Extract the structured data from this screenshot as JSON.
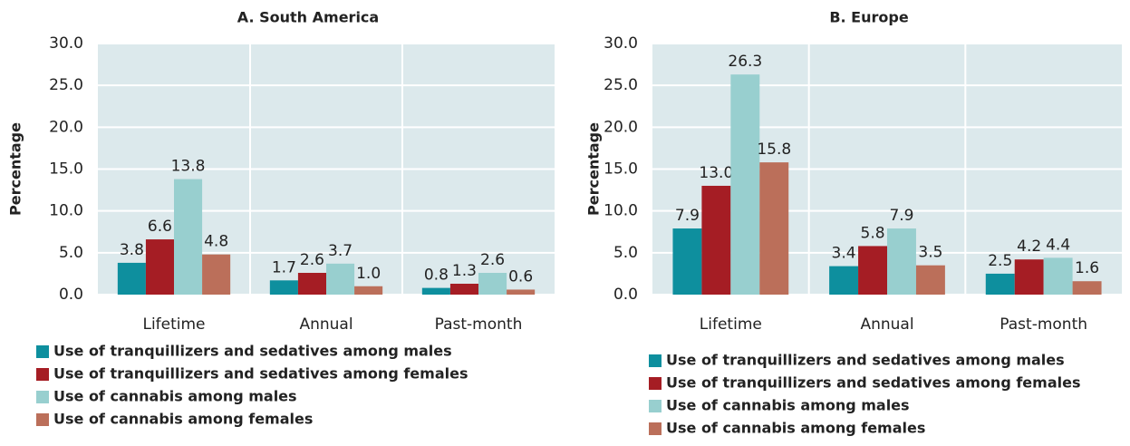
{
  "chart_data": [
    {
      "type": "bar",
      "title": "A. South America",
      "y_label": "Percentage",
      "categories": [
        "Lifetime",
        "Annual",
        "Past-month"
      ],
      "ylim": [
        0,
        30
      ],
      "yticks": [
        {
          "value": 0,
          "label": "0.0"
        },
        {
          "value": 5,
          "label": "5.0"
        },
        {
          "value": 10,
          "label": "10.0"
        },
        {
          "value": 15,
          "label": "15.0"
        },
        {
          "value": 20,
          "label": "20.0"
        },
        {
          "value": 25,
          "label": "25.0"
        },
        {
          "value": 30,
          "label": "30.0"
        }
      ],
      "grid": true,
      "series": [
        {
          "name": "Use of tranquillizers and sedatives among males",
          "color": "#0e8f9e",
          "values": [
            3.8,
            1.7,
            0.8
          ],
          "value_labels": [
            "3.8",
            "1.7",
            "0.8"
          ]
        },
        {
          "name": "Use of tranquillizers and sedatives among females",
          "color": "#a51d24",
          "values": [
            6.6,
            2.6,
            1.3
          ],
          "value_labels": [
            "6.6",
            "2.6",
            "1.3"
          ]
        },
        {
          "name": "Use of cannabis among males",
          "color": "#98cfcf",
          "values": [
            13.8,
            3.7,
            2.6
          ],
          "value_labels": [
            "13.8",
            "3.7",
            "2.6"
          ]
        },
        {
          "name": "Use of cannabis among females",
          "color": "#bb6f5a",
          "values": [
            4.8,
            1.0,
            0.6
          ],
          "value_labels": [
            "4.8",
            "1.0",
            "0.6"
          ]
        }
      ]
    },
    {
      "type": "bar",
      "title": "B. Europe",
      "y_label": "Percentage",
      "categories": [
        "Lifetime",
        "Annual",
        "Past-month"
      ],
      "ylim": [
        0,
        30
      ],
      "yticks": [
        {
          "value": 0,
          "label": "0.0"
        },
        {
          "value": 5,
          "label": "5.0"
        },
        {
          "value": 10,
          "label": "10.0"
        },
        {
          "value": 15,
          "label": "15.0"
        },
        {
          "value": 20,
          "label": "20.0"
        },
        {
          "value": 25,
          "label": "25.0"
        },
        {
          "value": 30,
          "label": "30.0"
        }
      ],
      "grid": true,
      "series": [
        {
          "name": "Use of tranquillizers and sedatives among males",
          "color": "#0e8f9e",
          "values": [
            7.9,
            3.4,
            2.5
          ],
          "value_labels": [
            "7.9",
            "3.4",
            "2.5"
          ]
        },
        {
          "name": "Use of tranquillizers and sedatives among females",
          "color": "#a51d24",
          "values": [
            13.0,
            5.8,
            4.2
          ],
          "value_labels": [
            "13.0",
            "5.8",
            "4.2"
          ]
        },
        {
          "name": "Use of cannabis among males",
          "color": "#98cfcf",
          "values": [
            26.3,
            7.9,
            4.4
          ],
          "value_labels": [
            "26.3",
            "7.9",
            "4.4"
          ]
        },
        {
          "name": "Use of cannabis among females",
          "color": "#bb6f5a",
          "values": [
            15.8,
            3.5,
            1.6
          ],
          "value_labels": [
            "15.8",
            "3.5",
            "1.6"
          ]
        }
      ]
    }
  ]
}
